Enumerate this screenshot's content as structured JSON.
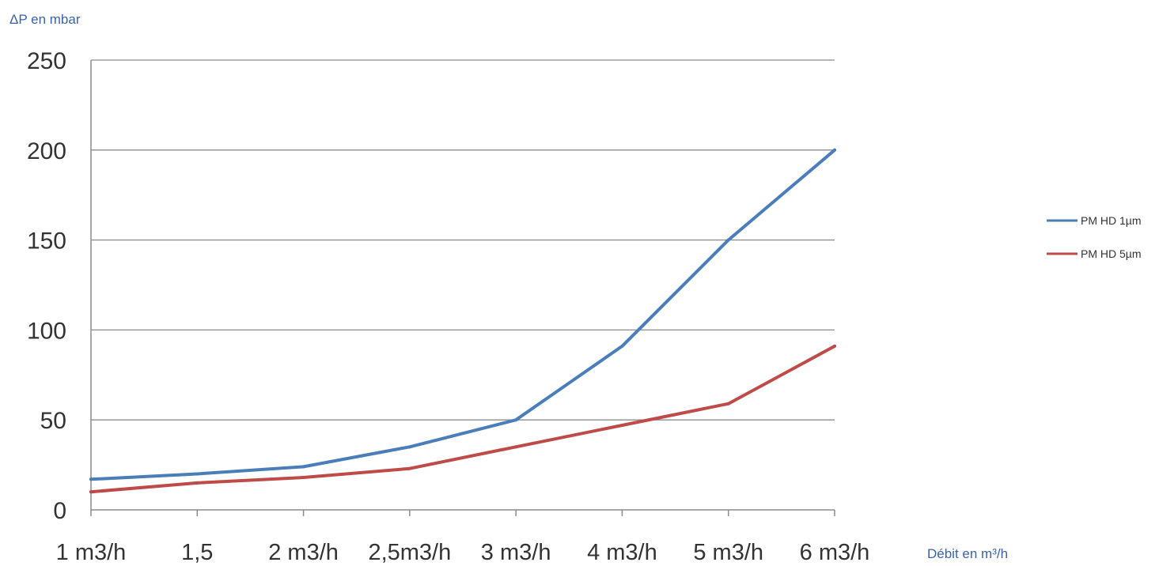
{
  "chart_data": {
    "type": "line",
    "title": "",
    "ylabel": "ΔP en mbar",
    "xlabel": "Débit en m³/h",
    "categories": [
      "1 m3/h",
      "1,5",
      "2 m3/h",
      "2,5m3/h",
      "3 m3/h",
      "4 m3/h",
      "5 m3/h",
      "6 m3/h"
    ],
    "yticks": [
      "0",
      "50",
      "100",
      "150",
      "200",
      "250"
    ],
    "ylim": [
      0,
      250
    ],
    "grid": true,
    "legend_position": "right",
    "series": [
      {
        "name": "PM HD 1µm",
        "color": "#4a7ebb",
        "values": [
          17,
          20,
          24,
          35,
          50,
          91,
          150,
          200
        ]
      },
      {
        "name": "PM HD 5µm",
        "color": "#be4b48",
        "values": [
          10,
          15,
          18,
          23,
          35,
          47,
          59,
          91
        ]
      }
    ]
  }
}
